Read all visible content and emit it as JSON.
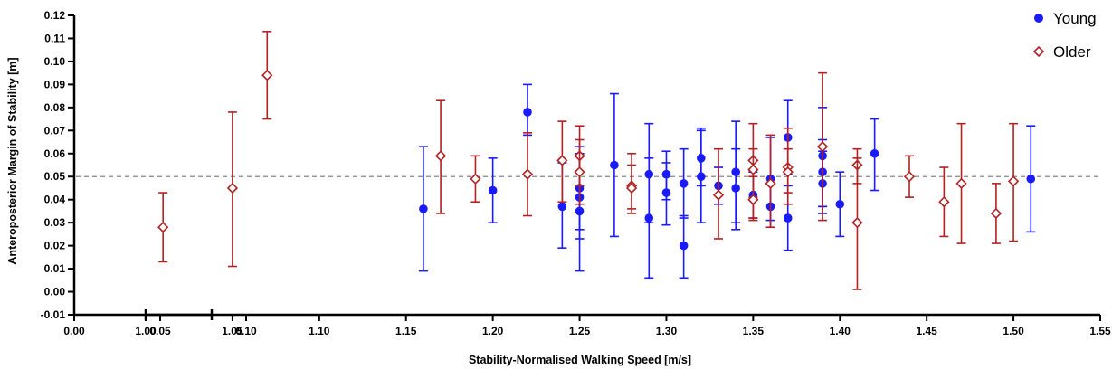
{
  "chart_data": {
    "type": "scatter",
    "xlabel": "Stability-Normalised Walking Speed [m/s]",
    "ylabel": "Anteroposterior Margin of Stability [m]",
    "xlim": [
      0.0,
      1.55
    ],
    "ylim": [
      -0.01,
      0.12
    ],
    "x_axis_break": [
      0.08,
      1.0
    ],
    "x_ticks": [
      "0.00",
      "0.05",
      "0.10",
      "1.00",
      "1.05",
      "1.10",
      "1.15",
      "1.20",
      "1.25",
      "1.30",
      "1.35",
      "1.40",
      "1.45",
      "1.50",
      "1.55"
    ],
    "y_ticks": [
      "-0.01",
      "0.00",
      "0.01",
      "0.02",
      "0.03",
      "0.04",
      "0.05",
      "0.06",
      "0.07",
      "0.08",
      "0.09",
      "0.10",
      "0.11",
      "0.12"
    ],
    "reference_line": {
      "y": 0.05,
      "style": "dashed",
      "color": "#888888"
    },
    "legend_position": "top-right",
    "series": [
      {
        "name": "Young",
        "marker": "filled-circle",
        "color": "#1a1aff",
        "points": [
          {
            "x": 1.16,
            "y": 0.036,
            "lo": 0.009,
            "hi": 0.063
          },
          {
            "x": 1.2,
            "y": 0.044,
            "lo": 0.03,
            "hi": 0.058
          },
          {
            "x": 1.22,
            "y": 0.078,
            "lo": 0.068,
            "hi": 0.09
          },
          {
            "x": 1.24,
            "y": 0.037,
            "lo": 0.019,
            "hi": 0.056
          },
          {
            "x": 1.25,
            "y": 0.045,
            "lo": 0.027,
            "hi": 0.063
          },
          {
            "x": 1.25,
            "y": 0.041,
            "lo": 0.023,
            "hi": 0.06
          },
          {
            "x": 1.25,
            "y": 0.035,
            "lo": 0.009,
            "hi": 0.06
          },
          {
            "x": 1.27,
            "y": 0.055,
            "lo": 0.024,
            "hi": 0.086
          },
          {
            "x": 1.29,
            "y": 0.051,
            "lo": 0.03,
            "hi": 0.073
          },
          {
            "x": 1.29,
            "y": 0.032,
            "lo": 0.006,
            "hi": 0.058
          },
          {
            "x": 1.3,
            "y": 0.051,
            "lo": 0.04,
            "hi": 0.061
          },
          {
            "x": 1.3,
            "y": 0.043,
            "lo": 0.029,
            "hi": 0.056
          },
          {
            "x": 1.31,
            "y": 0.047,
            "lo": 0.032,
            "hi": 0.062
          },
          {
            "x": 1.31,
            "y": 0.02,
            "lo": 0.006,
            "hi": 0.033
          },
          {
            "x": 1.32,
            "y": 0.058,
            "lo": 0.046,
            "hi": 0.071
          },
          {
            "x": 1.32,
            "y": 0.05,
            "lo": 0.03,
            "hi": 0.07
          },
          {
            "x": 1.33,
            "y": 0.046,
            "lo": 0.038,
            "hi": 0.054
          },
          {
            "x": 1.34,
            "y": 0.052,
            "lo": 0.03,
            "hi": 0.074
          },
          {
            "x": 1.34,
            "y": 0.045,
            "lo": 0.027,
            "hi": 0.062
          },
          {
            "x": 1.35,
            "y": 0.042,
            "lo": 0.032,
            "hi": 0.052
          },
          {
            "x": 1.36,
            "y": 0.049,
            "lo": 0.031,
            "hi": 0.067
          },
          {
            "x": 1.36,
            "y": 0.037,
            "lo": 0.028,
            "hi": 0.047
          },
          {
            "x": 1.37,
            "y": 0.067,
            "lo": 0.051,
            "hi": 0.083
          },
          {
            "x": 1.37,
            "y": 0.032,
            "lo": 0.018,
            "hi": 0.046
          },
          {
            "x": 1.39,
            "y": 0.059,
            "lo": 0.037,
            "hi": 0.08
          },
          {
            "x": 1.39,
            "y": 0.052,
            "lo": 0.037,
            "hi": 0.066
          },
          {
            "x": 1.39,
            "y": 0.047,
            "lo": 0.034,
            "hi": 0.061
          },
          {
            "x": 1.4,
            "y": 0.038,
            "lo": 0.024,
            "hi": 0.052
          },
          {
            "x": 1.42,
            "y": 0.06,
            "lo": 0.044,
            "hi": 0.075
          },
          {
            "x": 1.51,
            "y": 0.049,
            "lo": 0.026,
            "hi": 0.072
          }
        ]
      },
      {
        "name": "Older",
        "marker": "open-diamond",
        "color": "#b22222",
        "points": [
          {
            "x": 1.01,
            "y": 0.028,
            "lo": 0.013,
            "hi": 0.043
          },
          {
            "x": 1.05,
            "y": 0.045,
            "lo": 0.011,
            "hi": 0.078
          },
          {
            "x": 1.07,
            "y": 0.094,
            "lo": 0.075,
            "hi": 0.113
          },
          {
            "x": 1.17,
            "y": 0.059,
            "lo": 0.034,
            "hi": 0.083
          },
          {
            "x": 1.19,
            "y": 0.049,
            "lo": 0.039,
            "hi": 0.059
          },
          {
            "x": 1.22,
            "y": 0.051,
            "lo": 0.033,
            "hi": 0.069
          },
          {
            "x": 1.24,
            "y": 0.057,
            "lo": 0.039,
            "hi": 0.074
          },
          {
            "x": 1.25,
            "y": 0.059,
            "lo": 0.046,
            "hi": 0.072
          },
          {
            "x": 1.25,
            "y": 0.052,
            "lo": 0.038,
            "hi": 0.066
          },
          {
            "x": 1.28,
            "y": 0.046,
            "lo": 0.034,
            "hi": 0.06
          },
          {
            "x": 1.28,
            "y": 0.045,
            "lo": 0.036,
            "hi": 0.055
          },
          {
            "x": 1.33,
            "y": 0.042,
            "lo": 0.023,
            "hi": 0.062
          },
          {
            "x": 1.35,
            "y": 0.057,
            "lo": 0.041,
            "hi": 0.073
          },
          {
            "x": 1.35,
            "y": 0.053,
            "lo": 0.032,
            "hi": 0.062
          },
          {
            "x": 1.35,
            "y": 0.04,
            "lo": 0.031,
            "hi": 0.05
          },
          {
            "x": 1.36,
            "y": 0.047,
            "lo": 0.028,
            "hi": 0.068
          },
          {
            "x": 1.37,
            "y": 0.054,
            "lo": 0.038,
            "hi": 0.071
          },
          {
            "x": 1.37,
            "y": 0.052,
            "lo": 0.043,
            "hi": 0.062
          },
          {
            "x": 1.39,
            "y": 0.063,
            "lo": 0.031,
            "hi": 0.095
          },
          {
            "x": 1.41,
            "y": 0.055,
            "lo": 0.047,
            "hi": 0.062
          },
          {
            "x": 1.41,
            "y": 0.03,
            "lo": 0.001,
            "hi": 0.058
          },
          {
            "x": 1.44,
            "y": 0.05,
            "lo": 0.041,
            "hi": 0.059
          },
          {
            "x": 1.46,
            "y": 0.039,
            "lo": 0.024,
            "hi": 0.054
          },
          {
            "x": 1.47,
            "y": 0.047,
            "lo": 0.021,
            "hi": 0.073
          },
          {
            "x": 1.49,
            "y": 0.034,
            "lo": 0.021,
            "hi": 0.047
          },
          {
            "x": 1.5,
            "y": 0.048,
            "lo": 0.022,
            "hi": 0.073
          }
        ]
      }
    ]
  }
}
